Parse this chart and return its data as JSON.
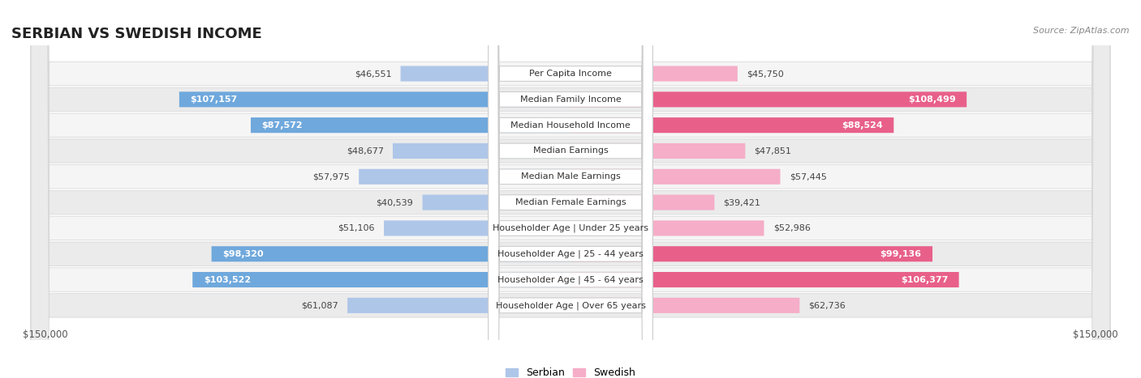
{
  "title": "SERBIAN VS SWEDISH INCOME",
  "source": "Source: ZipAtlas.com",
  "categories": [
    "Per Capita Income",
    "Median Family Income",
    "Median Household Income",
    "Median Earnings",
    "Median Male Earnings",
    "Median Female Earnings",
    "Householder Age | Under 25 years",
    "Householder Age | 25 - 44 years",
    "Householder Age | 45 - 64 years",
    "Householder Age | Over 65 years"
  ],
  "serbian_values": [
    46551,
    107157,
    87572,
    48677,
    57975,
    40539,
    51106,
    98320,
    103522,
    61087
  ],
  "swedish_values": [
    45750,
    108499,
    88524,
    47851,
    57445,
    39421,
    52986,
    99136,
    106377,
    62736
  ],
  "serbian_color_light": "#aec6e8",
  "serbian_color_dark": "#6fa8dc",
  "swedish_color_light": "#f5adc8",
  "swedish_color_dark": "#e8608a",
  "row_colors": [
    "#f5f5f5",
    "#ebebeb"
  ],
  "row_border": "#d8d8d8",
  "max_value": 150000,
  "legend_serbian": "Serbian",
  "legend_swedish": "Swedish",
  "xlabel_left": "$150,000",
  "xlabel_right": "$150,000",
  "title_fontsize": 13,
  "source_fontsize": 8,
  "cat_fontsize": 8,
  "val_fontsize": 8,
  "axis_fontsize": 8.5,
  "legend_fontsize": 9,
  "white_text_threshold": 70000
}
